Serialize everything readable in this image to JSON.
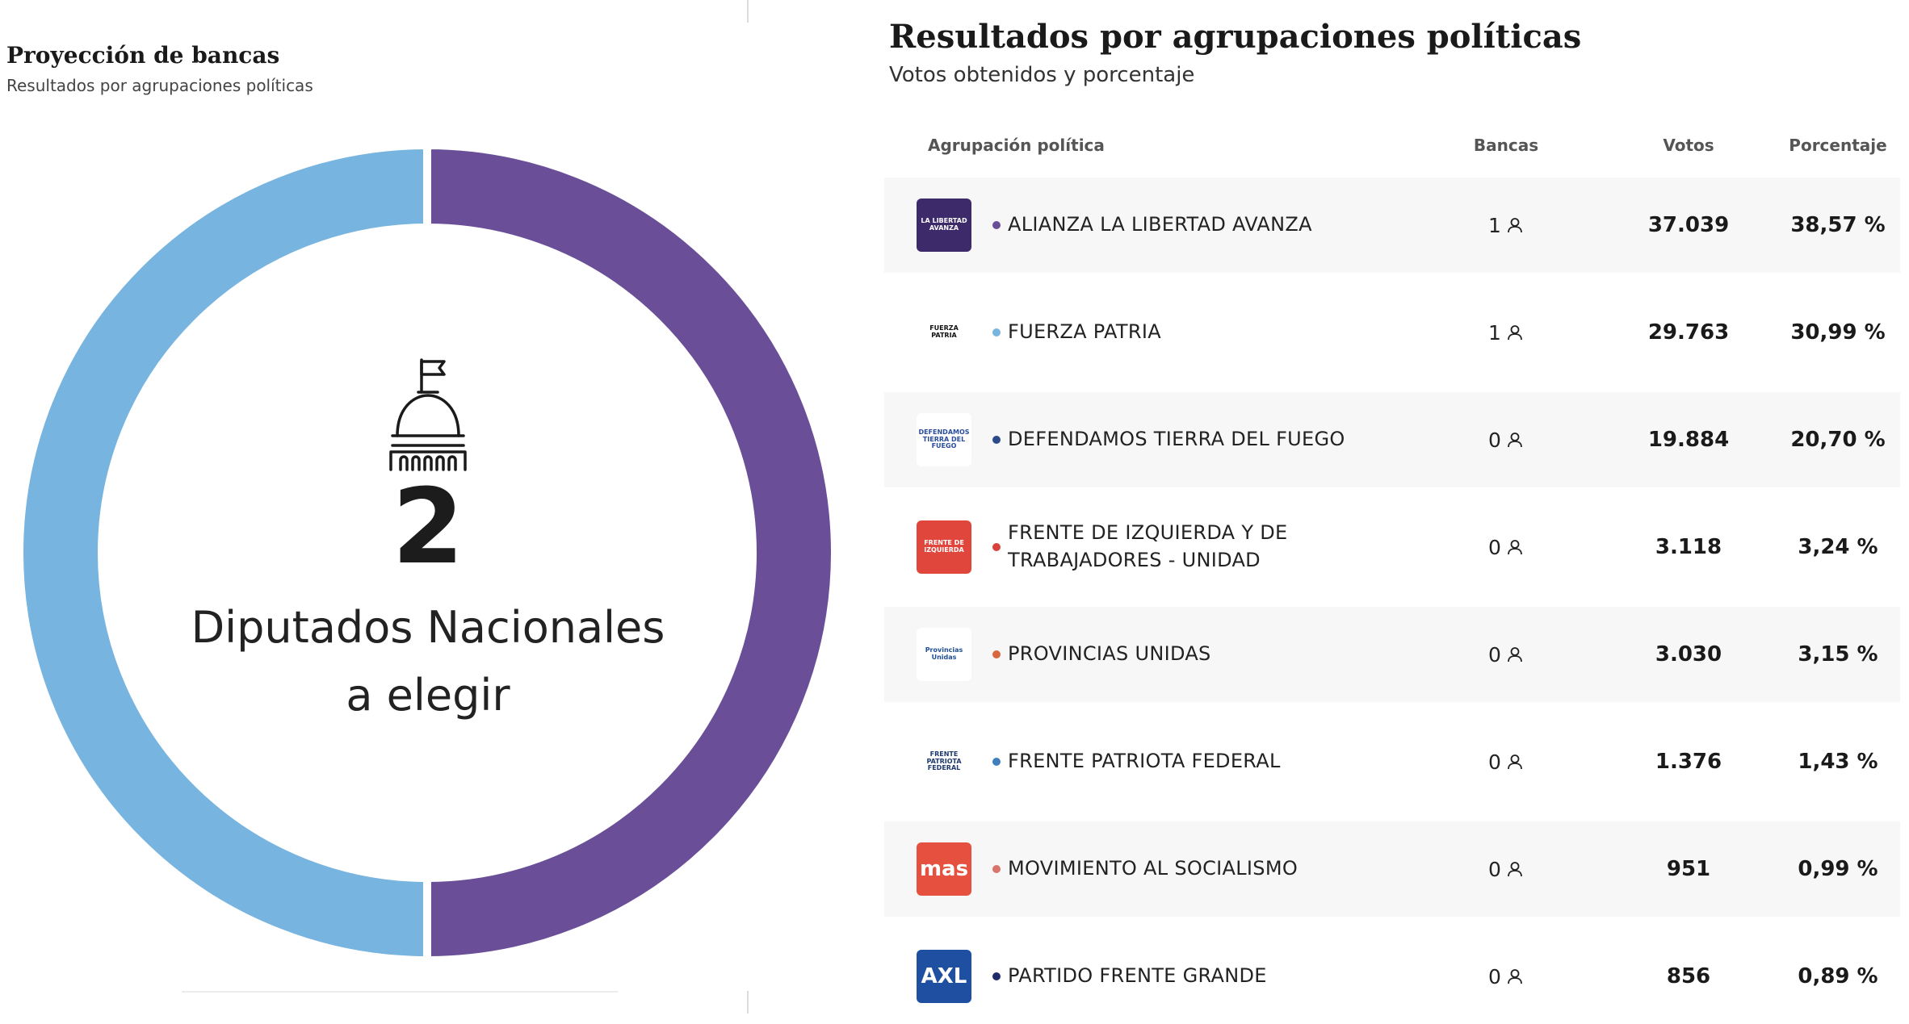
{
  "left": {
    "title": "Proyección de bancas",
    "subtitle": "Resultados por agrupaciones políticas",
    "seat_count": "2",
    "seat_caption_line1": "Diputados Nacionales",
    "seat_caption_line2": "a elegir",
    "icon": "capitol-building-icon"
  },
  "chart_data": {
    "type": "pie",
    "categories": [
      "ALIANZA LA LIBERTAD AVANZA",
      "FUERZA PATRIA"
    ],
    "values": [
      1,
      1
    ],
    "colors": [
      "#6a4e98",
      "#77b4df"
    ],
    "title": "Proyección de bancas"
  },
  "right": {
    "title": "Resultados por agrupaciones políticas",
    "subtitle": "Votos obtenidos y porcentaje",
    "columns": {
      "party": "Agrupación política",
      "seats": "Bancas",
      "votes": "Votos",
      "pct": "Porcentaje"
    },
    "rows": [
      {
        "name": "ALIANZA LA LIBERTAD AVANZA",
        "seats": "1",
        "votes": "37.039",
        "pct": "38,57 %",
        "dot": "#6a4e98",
        "logo": "libertad-avanza-logo",
        "logo_text": "LA LIBERTAD AVANZA",
        "logo_bg": "#3d2a6b",
        "logo_fg": "#ffffff"
      },
      {
        "name": "FUERZA PATRIA",
        "seats": "1",
        "votes": "29.763",
        "pct": "30,99 %",
        "dot": "#77b4df",
        "logo": "fuerza-patria-logo",
        "logo_text": "FUERZA PATRIA",
        "logo_bg": "#ffffff",
        "logo_fg": "#111111"
      },
      {
        "name": "DEFENDAMOS TIERRA DEL FUEGO",
        "seats": "0",
        "votes": "19.884",
        "pct": "20,70 %",
        "dot": "#2b4a8b",
        "logo": "defendamos-tierra-del-fuego-logo",
        "logo_text": "DEFENDAMOS TIERRA DEL FUEGO",
        "logo_bg": "#ffffff",
        "logo_fg": "#2a4d9b"
      },
      {
        "name": "FRENTE DE IZQUIERDA Y DE TRABAJADORES - UNIDAD",
        "seats": "0",
        "votes": "3.118",
        "pct": "3,24 %",
        "dot": "#d9423b",
        "logo": "frente-de-izquierda-logo",
        "logo_text": "FRENTE DE IZQUIERDA",
        "logo_bg": "#e1463d",
        "logo_fg": "#ffffff"
      },
      {
        "name": "PROVINCIAS UNIDAS",
        "seats": "0",
        "votes": "3.030",
        "pct": "3,15 %",
        "dot": "#d8683d",
        "logo": "provincias-unidas-logo",
        "logo_text": "Provincias Unidas",
        "logo_bg": "#ffffff",
        "logo_fg": "#1d4f91"
      },
      {
        "name": "FRENTE PATRIOTA FEDERAL",
        "seats": "0",
        "votes": "1.376",
        "pct": "1,43 %",
        "dot": "#3f7fbd",
        "logo": "frente-patriota-federal-logo",
        "logo_text": "FRENTE PATRIOTA FEDERAL",
        "logo_bg": "#ffffff",
        "logo_fg": "#1e3a6d"
      },
      {
        "name": "MOVIMIENTO AL SOCIALISMO",
        "seats": "0",
        "votes": "951",
        "pct": "0,99 %",
        "dot": "#d9736c",
        "logo": "mas-logo",
        "logo_text": "mas",
        "logo_bg": "#e5503f",
        "logo_fg": "#ffffff"
      },
      {
        "name": "PARTIDO FRENTE GRANDE",
        "seats": "0",
        "votes": "856",
        "pct": "0,89 %",
        "dot": "#1f2a6b",
        "logo": "axl-logo",
        "logo_text": "AXL",
        "logo_bg": "#1f4fa0",
        "logo_fg": "#ffffff"
      }
    ]
  }
}
